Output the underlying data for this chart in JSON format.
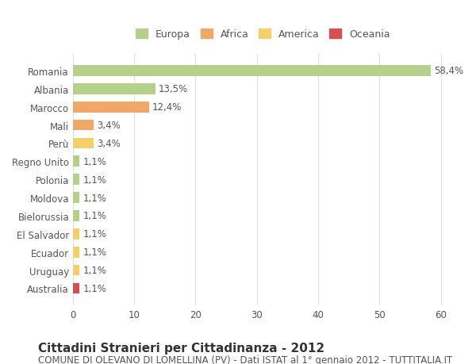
{
  "categories": [
    "Romania",
    "Albania",
    "Marocco",
    "Mali",
    "Perù",
    "Regno Unito",
    "Polonia",
    "Moldova",
    "Bielorussia",
    "El Salvador",
    "Ecuador",
    "Uruguay",
    "Australia"
  ],
  "values": [
    58.4,
    13.5,
    12.4,
    3.4,
    3.4,
    1.1,
    1.1,
    1.1,
    1.1,
    1.1,
    1.1,
    1.1,
    1.1
  ],
  "labels": [
    "58,4%",
    "13,5%",
    "12,4%",
    "3,4%",
    "3,4%",
    "1,1%",
    "1,1%",
    "1,1%",
    "1,1%",
    "1,1%",
    "1,1%",
    "1,1%",
    "1,1%"
  ],
  "colors": [
    "#b5d08a",
    "#b5d08a",
    "#f0a868",
    "#f0a868",
    "#f5d06a",
    "#b5d08a",
    "#b5d08a",
    "#b5d08a",
    "#b5d08a",
    "#f5d06a",
    "#f5d06a",
    "#f5d06a",
    "#d94f4f"
  ],
  "legend": {
    "labels": [
      "Europa",
      "Africa",
      "America",
      "Oceania"
    ],
    "colors": [
      "#b5d08a",
      "#f0a868",
      "#f5d06a",
      "#d94f4f"
    ]
  },
  "xlim": [
    0,
    62
  ],
  "xticks": [
    0,
    10,
    20,
    30,
    40,
    50,
    60
  ],
  "title": "Cittadini Stranieri per Cittadinanza - 2012",
  "subtitle": "COMUNE DI OLEVANO DI LOMELLINA (PV) - Dati ISTAT al 1° gennaio 2012 - TUTTITALIA.IT",
  "bg_color": "#ffffff",
  "grid_color": "#dddddd",
  "bar_height": 0.6,
  "title_fontsize": 11,
  "subtitle_fontsize": 8.5,
  "label_fontsize": 8.5,
  "tick_fontsize": 8.5
}
